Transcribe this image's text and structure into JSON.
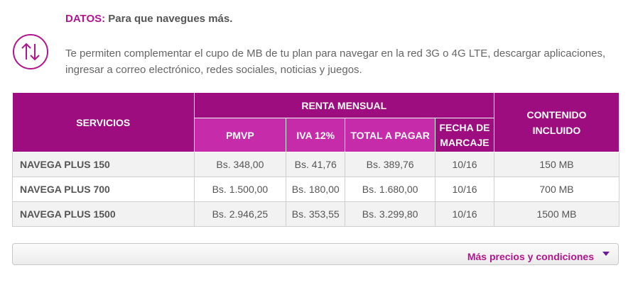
{
  "section": {
    "icon": "up-down-arrows-icon",
    "title_label": "DATOS:",
    "title_text": " Para que navegues más.",
    "description": "Te permiten complementar el cupo de MB de tu plan para navegar en la red 3G o 4G LTE, descargar aplicaciones, ingresar a correo electrónico, redes sociales, noticias y juegos."
  },
  "table": {
    "header": {
      "servicios": "SERVICIOS",
      "renta_mensual": "RENTA MENSUAL",
      "contenido": "CONTENIDO INCLUIDO",
      "pmvp": "PMVP",
      "iva": "IVA 12%",
      "total": "TOTAL A PAGAR",
      "fecha": "FECHA DE MARCAJE"
    },
    "rows": [
      {
        "service": "NAVEGA PLUS 150",
        "pmvp": "Bs. 348,00",
        "iva": "Bs. 41,76",
        "total": "Bs. 389,76",
        "fecha": "10/16",
        "contenido": "150 MB"
      },
      {
        "service": "NAVEGA PLUS 700",
        "pmvp": "Bs. 1.500,00",
        "iva": "Bs. 180,00",
        "total": "Bs. 1.680,00",
        "fecha": "10/16",
        "contenido": "700 MB"
      },
      {
        "service": "NAVEGA PLUS 1500",
        "pmvp": "Bs. 2.946,25",
        "iva": "Bs. 353,55",
        "total": "Bs. 3.299,80",
        "fecha": "10/16",
        "contenido": "1500 MB"
      }
    ]
  },
  "more": {
    "label": "Más precios y condiciones",
    "icon": "caret-down-icon"
  },
  "colors": {
    "accent": "#b1168e",
    "header_dark": "#9e0d80",
    "header_light": "#c62ba9"
  }
}
